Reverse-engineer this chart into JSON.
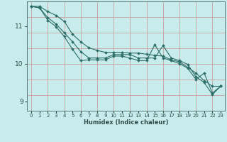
{
  "xlabel": "Humidex (Indice chaleur)",
  "ylabel": "",
  "bg_color": "#c8eceb",
  "line_color": "#2d6e68",
  "grid_color": "#c8a0a0",
  "xlim": [
    -0.5,
    23.5
  ],
  "ylim": [
    8.75,
    11.65
  ],
  "yticks": [
    9,
    10,
    11
  ],
  "xticks": [
    0,
    1,
    2,
    3,
    4,
    5,
    6,
    7,
    8,
    9,
    10,
    11,
    12,
    13,
    14,
    15,
    16,
    17,
    18,
    19,
    20,
    21,
    22,
    23
  ],
  "line1_x": [
    0,
    1,
    2,
    3,
    4,
    5,
    6,
    7,
    8,
    9,
    10,
    11,
    12,
    13,
    14,
    15,
    16,
    17,
    18,
    19,
    20,
    21,
    22,
    23
  ],
  "line1_y": [
    11.52,
    11.48,
    11.22,
    11.05,
    10.82,
    10.58,
    10.32,
    10.15,
    10.15,
    10.15,
    10.24,
    10.24,
    10.24,
    10.15,
    10.15,
    10.15,
    10.48,
    10.15,
    10.08,
    9.98,
    9.65,
    9.5,
    9.18,
    9.4
  ],
  "line2_x": [
    0,
    1,
    2,
    3,
    4,
    5,
    6,
    7,
    8,
    9,
    10,
    11,
    12,
    13,
    14,
    15,
    16,
    17,
    18,
    19,
    20,
    21,
    22,
    23
  ],
  "line2_y": [
    11.52,
    11.48,
    11.15,
    10.98,
    10.72,
    10.38,
    10.08,
    10.1,
    10.1,
    10.1,
    10.2,
    10.2,
    10.15,
    10.08,
    10.08,
    10.5,
    10.15,
    10.08,
    10.0,
    9.88,
    9.58,
    9.75,
    9.22,
    9.4
  ],
  "line3_x": [
    0,
    1,
    2,
    3,
    4,
    5,
    6,
    7,
    8,
    9,
    10,
    11,
    12,
    13,
    14,
    15,
    16,
    17,
    18,
    19,
    20,
    21,
    22,
    23
  ],
  "line3_y": [
    11.52,
    11.52,
    11.38,
    11.28,
    11.12,
    10.78,
    10.58,
    10.42,
    10.35,
    10.3,
    10.3,
    10.3,
    10.28,
    10.28,
    10.25,
    10.22,
    10.2,
    10.1,
    10.05,
    9.9,
    9.75,
    9.55,
    9.4,
    9.4
  ],
  "xlabel_fontsize": 6.0,
  "ytick_fontsize": 6.5,
  "xtick_fontsize": 5.0,
  "grid_nx": 12,
  "grid_ny": 5
}
